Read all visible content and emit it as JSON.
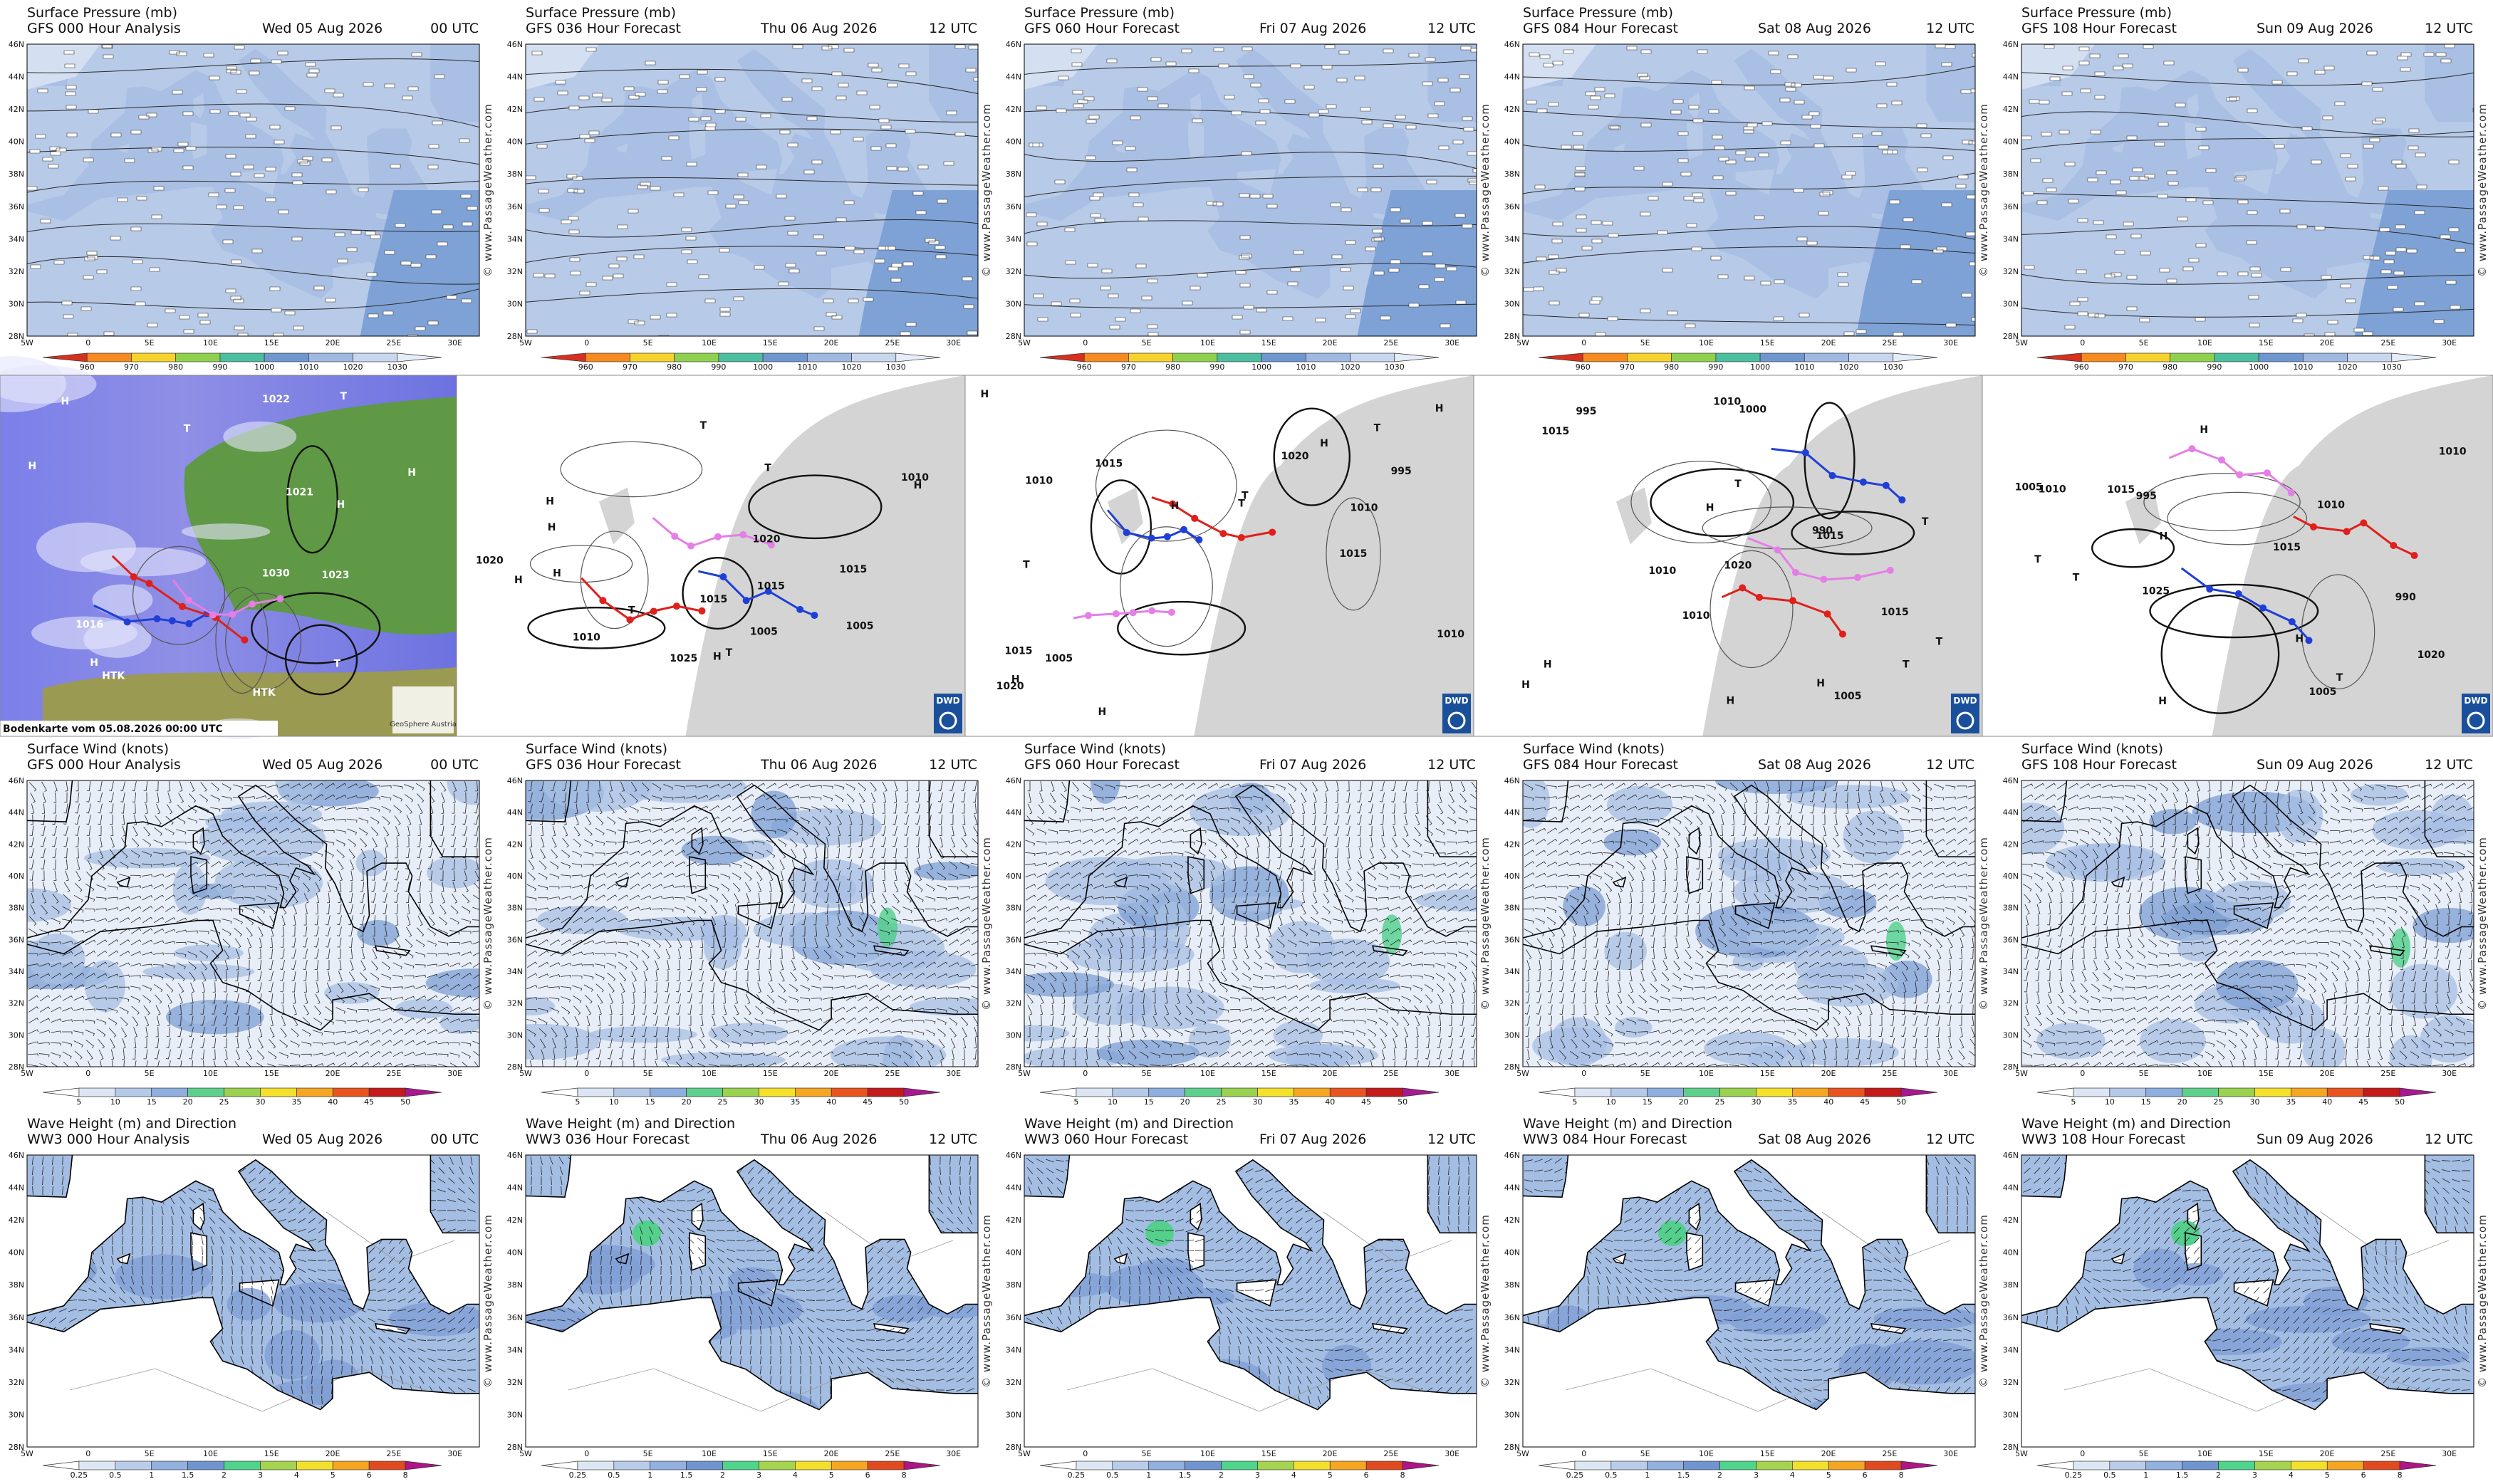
{
  "surface_pressure": {
    "panels": [
      {
        "title": "Surface Pressure (mb)",
        "model": "GFS 000 Hour Analysis",
        "date": "Wed 05 Aug 2026",
        "time": "00 UTC"
      },
      {
        "title": "Surface Pressure (mb)",
        "model": "GFS 036 Hour Forecast",
        "date": "Thu 06 Aug 2026",
        "time": "12 UTC"
      },
      {
        "title": "Surface Pressure (mb)",
        "model": "GFS 060 Hour Forecast",
        "date": "Fri 07 Aug 2026",
        "time": "12 UTC"
      },
      {
        "title": "Surface Pressure (mb)",
        "model": "GFS 084 Hour Forecast",
        "date": "Sat 08 Aug 2026",
        "time": "12 UTC"
      },
      {
        "title": "Surface Pressure (mb)",
        "model": "GFS 108 Hour Forecast",
        "date": "Sun 09 Aug 2026",
        "time": "12 UTC"
      }
    ],
    "colorbar": {
      "labels": [
        "960",
        "970",
        "980",
        "990",
        "1000",
        "1010",
        "1020",
        "1030"
      ],
      "colors": [
        "#d7301f",
        "#f58a1f",
        "#f6d32c",
        "#8fd14f",
        "#4bbfa0",
        "#6f97cf",
        "#9fb9e2",
        "#c8d7ee",
        "#e6edf8"
      ]
    }
  },
  "surface_analysis": [
    {
      "labels": [
        "HTK",
        "H",
        "1030",
        "T",
        "H",
        "1021",
        "HTK",
        "H",
        "1016",
        "H",
        "1022",
        "T",
        "H",
        "1023",
        "T"
      ],
      "caption": "Bodenkarte vom 05.08.2026 00:00 UTC",
      "logo": "GeoSphere Austria"
    },
    {
      "labels": [
        "H",
        "1010",
        "T",
        "1015",
        "1005",
        "H",
        "1010",
        "1020",
        "T",
        "1015",
        "H",
        "T",
        "1025",
        "H",
        "1020",
        "H",
        "1015",
        "H",
        "T",
        "1005"
      ],
      "logo": "DWD"
    },
    {
      "labels": [
        "H",
        "1015",
        "1010",
        "T",
        "995",
        "1005",
        "H",
        "1020",
        "H",
        "1015",
        "T",
        "1010",
        "H",
        "1020",
        "T",
        "H",
        "1015",
        "1010",
        "H",
        "T"
      ],
      "logo": "DWD"
    },
    {
      "labels": [
        "1015",
        "T",
        "1010",
        "990",
        "T",
        "995",
        "1000",
        "H",
        "1020",
        "H",
        "1005",
        "1015",
        "T",
        "H",
        "1015",
        "1010",
        "T",
        "H",
        "1010",
        "H"
      ],
      "logo": "DWD"
    },
    {
      "labels": [
        "1010",
        "T",
        "990",
        "995",
        "1005",
        "1015",
        "H",
        "1020",
        "1010",
        "T",
        "H",
        "1025",
        "T",
        "1015",
        "1005",
        "H",
        "1010",
        "H"
      ],
      "logo": "DWD"
    }
  ],
  "surface_wind": {
    "panels": [
      {
        "title": "Surface Wind (knots)",
        "model": "GFS 000 Hour Analysis",
        "date": "Wed 05 Aug 2026",
        "time": "00 UTC"
      },
      {
        "title": "Surface Wind (knots)",
        "model": "GFS 036 Hour Forecast",
        "date": "Thu 06 Aug 2026",
        "time": "12 UTC"
      },
      {
        "title": "Surface Wind (knots)",
        "model": "GFS 060 Hour Forecast",
        "date": "Fri 07 Aug 2026",
        "time": "12 UTC"
      },
      {
        "title": "Surface Wind (knots)",
        "model": "GFS 084 Hour Forecast",
        "date": "Sat 08 Aug 2026",
        "time": "12 UTC"
      },
      {
        "title": "Surface Wind (knots)",
        "model": "GFS 108 Hour Forecast",
        "date": "Sun 09 Aug 2026",
        "time": "12 UTC"
      }
    ],
    "colorbar": {
      "labels": [
        "5",
        "10",
        "15",
        "20",
        "25",
        "30",
        "35",
        "40",
        "45",
        "50"
      ],
      "colors": [
        "#ffffff",
        "#dbe5f3",
        "#b5c9e8",
        "#8daede",
        "#5fd08c",
        "#9ad14f",
        "#f5e02c",
        "#f5a623",
        "#e8541f",
        "#c41a1a",
        "#a8188f"
      ]
    }
  },
  "wave_height": {
    "panels": [
      {
        "title": "Wave Height (m) and Direction",
        "model": "WW3 000 Hour Analysis",
        "date": "Wed 05 Aug 2026",
        "time": "00 UTC"
      },
      {
        "title": "Wave Height (m) and Direction",
        "model": "WW3 036 Hour Forecast",
        "date": "Thu 06 Aug 2026",
        "time": "12 UTC"
      },
      {
        "title": "Wave Height (m) and Direction",
        "model": "WW3 060 Hour Forecast",
        "date": "Fri 07 Aug 2026",
        "time": "12 UTC"
      },
      {
        "title": "Wave Height (m) and Direction",
        "model": "WW3 084 Hour Forecast",
        "date": "Sat 08 Aug 2026",
        "time": "12 UTC"
      },
      {
        "title": "Wave Height (m) and Direction",
        "model": "WW3 108 Hour Forecast",
        "date": "Sun 09 Aug 2026",
        "time": "12 UTC"
      }
    ],
    "colorbar": {
      "labels": [
        "0.25",
        "0.5",
        "1",
        "1.5",
        "2",
        "3",
        "4",
        "5",
        "6",
        "8"
      ],
      "colors": [
        "#ffffff",
        "#dde7f4",
        "#b9cdea",
        "#93b1de",
        "#6f94cf",
        "#4fd48c",
        "#a5d44f",
        "#f2e02c",
        "#f5a623",
        "#e04a1f",
        "#b01485"
      ]
    }
  },
  "axes": {
    "lat_labels": [
      "46N",
      "44N",
      "42N",
      "40N",
      "38N",
      "36N",
      "34N",
      "32N",
      "30N",
      "28N"
    ],
    "lon_labels": [
      "5W",
      "0",
      "5E",
      "10E",
      "15E",
      "20E",
      "25E",
      "30E"
    ]
  },
  "watermark": "© www.PassageWeather.com"
}
